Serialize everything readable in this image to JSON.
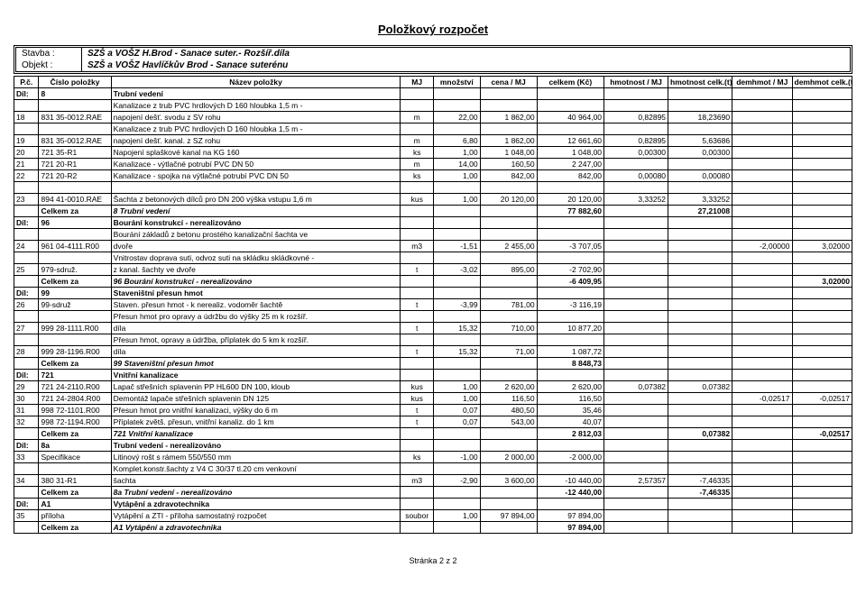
{
  "title": "Položkový rozpočet",
  "header": {
    "stavba_label": "Stavba :",
    "stavba_value": "SZŠ a VOŠZ H.Brod - Sanace suter.- Rozšíř.díla",
    "objekt_label": "Objekt :",
    "objekt_value": "SZŠ a VOŠZ Havlíčkův Brod - Sanace suterénu"
  },
  "columns": [
    "P.č.",
    "Číslo položky",
    "Název položky",
    "MJ",
    "množství",
    "cena / MJ",
    "celkem (Kč)",
    "hmotnost / MJ",
    "hmotnost celk.(t)",
    "demhmot / MJ",
    "demhmot celk.(t)"
  ],
  "rows": [
    {
      "t": "dil",
      "c": [
        "Díl:",
        "8",
        "Trubní vedení",
        "",
        "",
        "",
        "",
        "",
        "",
        "",
        ""
      ]
    },
    {
      "c": [
        "",
        "",
        "Kanalizace z trub PVC hrdlových D 160 hloubka 1,5 m -",
        "",
        "",
        "",
        "",
        "",
        "",
        "",
        ""
      ]
    },
    {
      "c": [
        "18",
        "831 35-0012.RAE",
        "napojení dešť. svodu z SV rohu",
        "m",
        "22,00",
        "1 862,00",
        "40 964,00",
        "0,82895",
        "18,23690",
        "",
        ""
      ]
    },
    {
      "c": [
        "",
        "",
        "Kanalizace z trub PVC hrdlových D 160 hloubka 1,5 m -",
        "",
        "",
        "",
        "",
        "",
        "",
        "",
        ""
      ]
    },
    {
      "c": [
        "19",
        "831 35-0012.RAE",
        "napojení dešť. kanal. z SZ rohu",
        "m",
        "6,80",
        "1 862,00",
        "12 661,60",
        "0,82895",
        "5,63686",
        "",
        ""
      ]
    },
    {
      "c": [
        "20",
        "721 35-R1",
        "Napojení splaškové kanal na KG 160",
        "ks",
        "1,00",
        "1 048,00",
        "1 048,00",
        "0,00300",
        "0,00300",
        "",
        ""
      ]
    },
    {
      "c": [
        "21",
        "721 20-R1",
        "Kanalizace - výtlačné potrubí PVC DN 50",
        "m",
        "14,00",
        "160,50",
        "2 247,00",
        "",
        "",
        "",
        ""
      ]
    },
    {
      "c": [
        "22",
        "721 20-R2",
        "Kanalizace - spojka na výtlačné potrubí PVC DN 50",
        "ks",
        "1,00",
        "842,00",
        "842,00",
        "0,00080",
        "0,00080",
        "",
        ""
      ]
    },
    {
      "gap": true
    },
    {
      "c": [
        "23",
        "894 41-0010.RAE",
        "Šachta z betonových dílců pro DN 200 výška vstupu 1,6 m",
        "kus",
        "1,00",
        "20 120,00",
        "20 120,00",
        "3,33252",
        "3,33252",
        "",
        ""
      ]
    },
    {
      "t": "sum",
      "c": [
        "",
        "Celkem za",
        "8 Trubní vedení",
        "",
        "",
        "",
        "77 882,60",
        "",
        "27,21008",
        "",
        ""
      ]
    },
    {
      "t": "dil",
      "c": [
        "Díl:",
        "96",
        "Bourání konstrukcí - nerealizováno",
        "",
        "",
        "",
        "",
        "",
        "",
        "",
        ""
      ]
    },
    {
      "c": [
        "",
        "",
        "Bourání základů z betonu prostého kanalizační šachta ve",
        "",
        "",
        "",
        "",
        "",
        "",
        "",
        ""
      ]
    },
    {
      "c": [
        "24",
        "961 04-4111.R00",
        "dvoře",
        "m3",
        "-1,51",
        "2 455,00",
        "-3 707,05",
        "",
        "",
        "-2,00000",
        "3,02000"
      ]
    },
    {
      "c": [
        "",
        "",
        "Vnitrostav doprava suti, odvoz suti na skládku skládkovné -",
        "",
        "",
        "",
        "",
        "",
        "",
        "",
        ""
      ]
    },
    {
      "c": [
        "25",
        "979-sdruž.",
        "z kanal. šachty ve dvoře",
        "t",
        "-3,02",
        "895,00",
        "-2 702,90",
        "",
        "",
        "",
        ""
      ]
    },
    {
      "t": "sum",
      "c": [
        "",
        "Celkem za",
        "96 Bourání konstrukcí - nerealizováno",
        "",
        "",
        "",
        "-6 409,95",
        "",
        "",
        "",
        "3,02000"
      ]
    },
    {
      "t": "dil",
      "c": [
        "Díl:",
        "99",
        "Staveništní přesun hmot",
        "",
        "",
        "",
        "",
        "",
        "",
        "",
        ""
      ]
    },
    {
      "c": [
        "26",
        "99-sdruž",
        "Staven. přesun hmot - k nerealiz. vodoměr šachtě",
        "t",
        "-3,99",
        "781,00",
        "-3 116,19",
        "",
        "",
        "",
        ""
      ]
    },
    {
      "c": [
        "",
        "",
        "Přesun hmot pro opravy a údržbu do výšky 25 m k rozšíř.",
        "",
        "",
        "",
        "",
        "",
        "",
        "",
        ""
      ]
    },
    {
      "c": [
        "27",
        "999 28-1111.R00",
        "díla",
        "t",
        "15,32",
        "710,00",
        "10 877,20",
        "",
        "",
        "",
        ""
      ]
    },
    {
      "c": [
        "",
        "",
        "Přesun hmot, opravy a údržba, příplatek do 5 km k rozšíř.",
        "",
        "",
        "",
        "",
        "",
        "",
        "",
        ""
      ]
    },
    {
      "c": [
        "28",
        "999 28-1196.R00",
        "díla",
        "t",
        "15,32",
        "71,00",
        "1 087,72",
        "",
        "",
        "",
        ""
      ]
    },
    {
      "t": "sum",
      "c": [
        "",
        "Celkem za",
        "99 Staveništní přesun hmot",
        "",
        "",
        "",
        "8 848,73",
        "",
        "",
        "",
        ""
      ]
    },
    {
      "t": "dil",
      "c": [
        "Díl:",
        "721",
        "Vnitřní kanalizace",
        "",
        "",
        "",
        "",
        "",
        "",
        "",
        ""
      ]
    },
    {
      "c": [
        "29",
        "721 24-2110.R00",
        "Lapač střešních splavenin PP HL600 DN 100, kloub",
        "kus",
        "1,00",
        "2 620,00",
        "2 620,00",
        "0,07382",
        "0,07382",
        "",
        ""
      ]
    },
    {
      "c": [
        "30",
        "721 24-2804.R00",
        "Demontáž lapače střešních splavenin DN 125",
        "kus",
        "1,00",
        "116,50",
        "116,50",
        "",
        "",
        "-0,02517",
        "-0,02517"
      ]
    },
    {
      "c": [
        "31",
        "998 72-1101.R00",
        "Přesun hmot pro vnitřní kanalizaci, výšky do 6 m",
        "t",
        "0,07",
        "480,50",
        "35,46",
        "",
        "",
        "",
        ""
      ]
    },
    {
      "c": [
        "32",
        "998 72-1194.R00",
        "Příplatek zvětš. přesun, vnitřní kanaliz. do 1 km",
        "t",
        "0,07",
        "543,00",
        "40,07",
        "",
        "",
        "",
        ""
      ]
    },
    {
      "t": "sum",
      "c": [
        "",
        "Celkem za",
        "721 Vnitřní kanalizace",
        "",
        "",
        "",
        "2 812,03",
        "",
        "0,07382",
        "",
        "-0,02517"
      ]
    },
    {
      "t": "dil",
      "c": [
        "Díl:",
        "8a",
        "Trubní vedení - nerealizováno",
        "",
        "",
        "",
        "",
        "",
        "",
        "",
        ""
      ]
    },
    {
      "c": [
        "33",
        "Specifikace",
        "Litinový rošt s rámem 550/550 mm",
        "ks",
        "-1,00",
        "2 000,00",
        "-2 000,00",
        "",
        "",
        "",
        ""
      ]
    },
    {
      "c": [
        "",
        "",
        "Komplet.konstr.šachty z V4 C 30/37 tl.20 cm venkovní",
        "",
        "",
        "",
        "",
        "",
        "",
        "",
        ""
      ]
    },
    {
      "c": [
        "34",
        "380 31-R1",
        "šachta",
        "m3",
        "-2,90",
        "3 600,00",
        "-10 440,00",
        "2,57357",
        "-7,46335",
        "",
        ""
      ]
    },
    {
      "t": "sum",
      "c": [
        "",
        "Celkem za",
        "8a Trubní vedení - nerealizováno",
        "",
        "",
        "",
        "-12 440,00",
        "",
        "-7,46335",
        "",
        ""
      ]
    },
    {
      "t": "dil",
      "c": [
        "Díl:",
        "A1",
        "Vytápění a zdravotechnika",
        "",
        "",
        "",
        "",
        "",
        "",
        "",
        ""
      ]
    },
    {
      "c": [
        "35",
        "příloha",
        "Vytápění a ZTI - příloha samostatný rozpočet",
        "soubor",
        "1,00",
        "97 894,00",
        "97 894,00",
        "",
        "",
        "",
        ""
      ]
    },
    {
      "t": "sum",
      "c": [
        "",
        "Celkem za",
        "A1 Vytápění a zdravotechnika",
        "",
        "",
        "",
        "97 894,00",
        "",
        "",
        "",
        ""
      ]
    }
  ],
  "footer": "Stránka 2 z 2"
}
